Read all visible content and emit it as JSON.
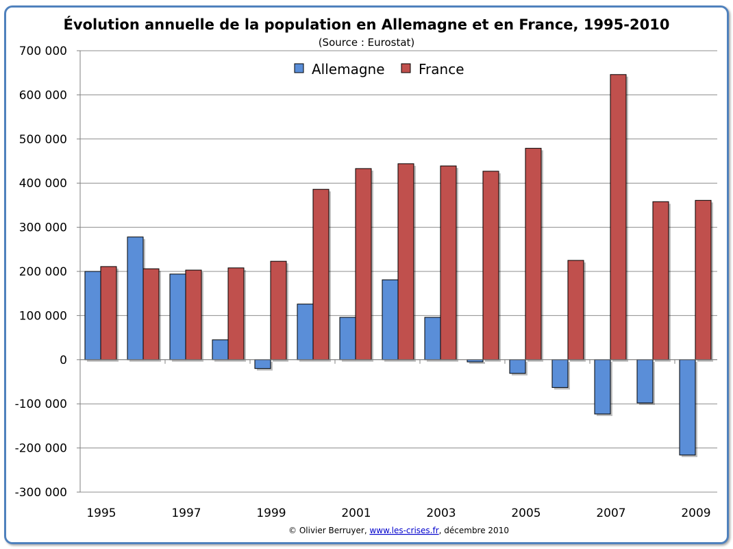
{
  "chart_data": {
    "type": "bar",
    "title": "Évolution annuelle de la population en Allemagne et en France, 1995-2010",
    "subtitle": "(Source : Eurostat)",
    "categories": [
      "1995",
      "1996",
      "1997",
      "1998",
      "1999",
      "2000",
      "2001",
      "2002",
      "2003",
      "2004",
      "2005",
      "2006",
      "2007",
      "2008",
      "2009"
    ],
    "x_tick_labels": [
      "1995",
      "1997",
      "1999",
      "2001",
      "2003",
      "2005",
      "2007",
      "2009"
    ],
    "series": [
      {
        "name": "Allemagne",
        "color": "#5a8ed8",
        "values": [
          200000,
          278000,
          194000,
          45000,
          -20000,
          126000,
          96000,
          181000,
          96000,
          -5000,
          -31000,
          -63000,
          -123000,
          -98000,
          -216000
        ]
      },
      {
        "name": "France",
        "color": "#c0504d",
        "values": [
          211000,
          206000,
          203000,
          208000,
          223000,
          386000,
          433000,
          444000,
          439000,
          427000,
          479000,
          225000,
          646000,
          358000,
          361000
        ]
      }
    ],
    "ylim": [
      -300000,
      700000
    ],
    "y_ticks": [
      -300000,
      -200000,
      -100000,
      0,
      100000,
      200000,
      300000,
      400000,
      500000,
      600000,
      700000
    ],
    "y_tick_labels": [
      "-300 000",
      "-200 000",
      "-100 000",
      "0",
      "100 000",
      "200 000",
      "300 000",
      "400 000",
      "500 000",
      "600 000",
      "700 000"
    ],
    "grid": true,
    "legend_position": "top-center"
  },
  "footer": {
    "prefix": "© Olivier Berruyer, ",
    "link": "www.les-crises.fr",
    "suffix": ", décembre 2010"
  }
}
